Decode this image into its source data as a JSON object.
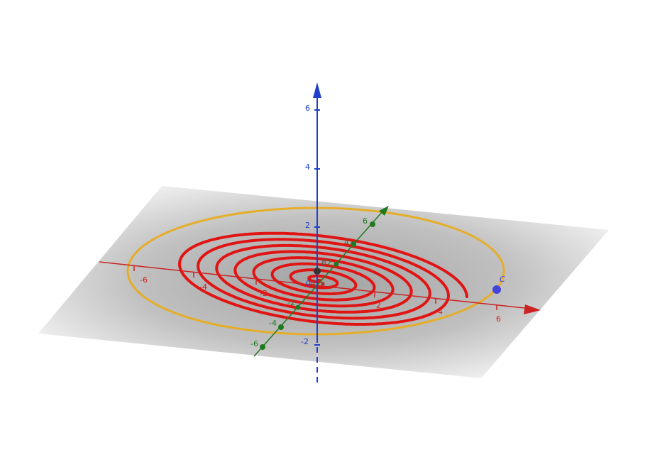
{
  "colors": {
    "x_axis": "#cc2222",
    "y_axis": "#1f7a1f",
    "z_axis": "#1f3fcc",
    "plane": "#c9c9c9",
    "spiral": "#e11414",
    "ellipse": "#e6ad28",
    "point_C": "#4444dd",
    "point_B": "#333333"
  },
  "axes": {
    "x": {
      "ticks": [
        "-6",
        "-4",
        "-2",
        "2",
        "4",
        "6"
      ]
    },
    "y": {
      "ticks": [
        "-6",
        "-4",
        "-2",
        "2",
        "4",
        "6"
      ]
    },
    "z": {
      "ticks": [
        "-2",
        "2",
        "4",
        "6"
      ]
    },
    "origin_label": "0"
  },
  "points": {
    "B": {
      "label": "B"
    },
    "C": {
      "label": "C"
    },
    "A": {
      "label": "A"
    }
  },
  "spiral": {
    "turns": 8,
    "max_radius": 5.3
  },
  "ellipse": {
    "radius": 6.3
  }
}
